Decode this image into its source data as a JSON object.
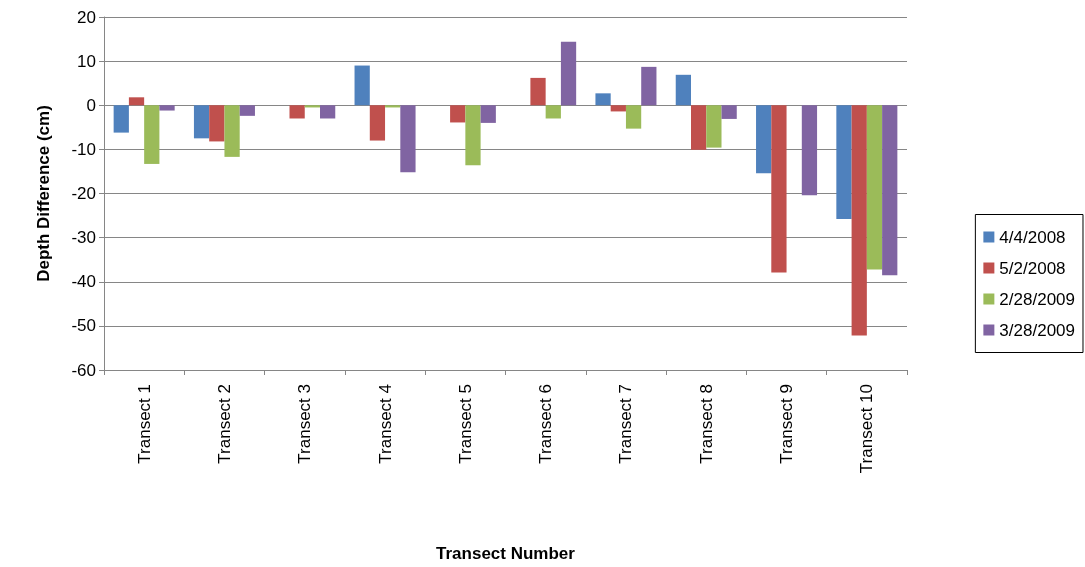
{
  "chart_data": {
    "type": "bar",
    "xlabel": "Transect Number",
    "ylabel": "Depth Difference (cm)",
    "categories": [
      "Transect 1",
      "Transect 2",
      "Transect 3",
      "Transect 4",
      "Transect 5",
      "Transect 6",
      "Transect 7",
      "Transect 8",
      "Transect 9",
      "Transect 10"
    ],
    "series": [
      {
        "name": "4/4/2008",
        "color": "#4f81bd",
        "values": [
          -6.2,
          -7.5,
          0,
          9.0,
          0,
          0,
          2.7,
          6.9,
          -15.4,
          -25.8
        ]
      },
      {
        "name": "5/2/2008",
        "color": "#c0504d",
        "values": [
          1.8,
          -8.2,
          -3.0,
          -8.0,
          -3.9,
          6.2,
          -1.4,
          -10.1,
          -37.9,
          -52.2
        ]
      },
      {
        "name": "2/28/2009",
        "color": "#9bbb59",
        "values": [
          -13.3,
          -11.7,
          -0.5,
          -0.5,
          -13.6,
          -3.0,
          -5.3,
          -9.6,
          0,
          -37.2
        ]
      },
      {
        "name": "3/28/2009",
        "color": "#8064a2",
        "values": [
          -1.2,
          -2.4,
          -3.0,
          -15.2,
          -4.0,
          14.4,
          8.7,
          -3.1,
          -20.4,
          -38.5
        ]
      }
    ],
    "ylim": [
      -60,
      20
    ],
    "yticks": [
      -60,
      -50,
      -40,
      -30,
      -20,
      -10,
      0,
      10,
      20
    ],
    "grid": "y",
    "legend": "right"
  }
}
